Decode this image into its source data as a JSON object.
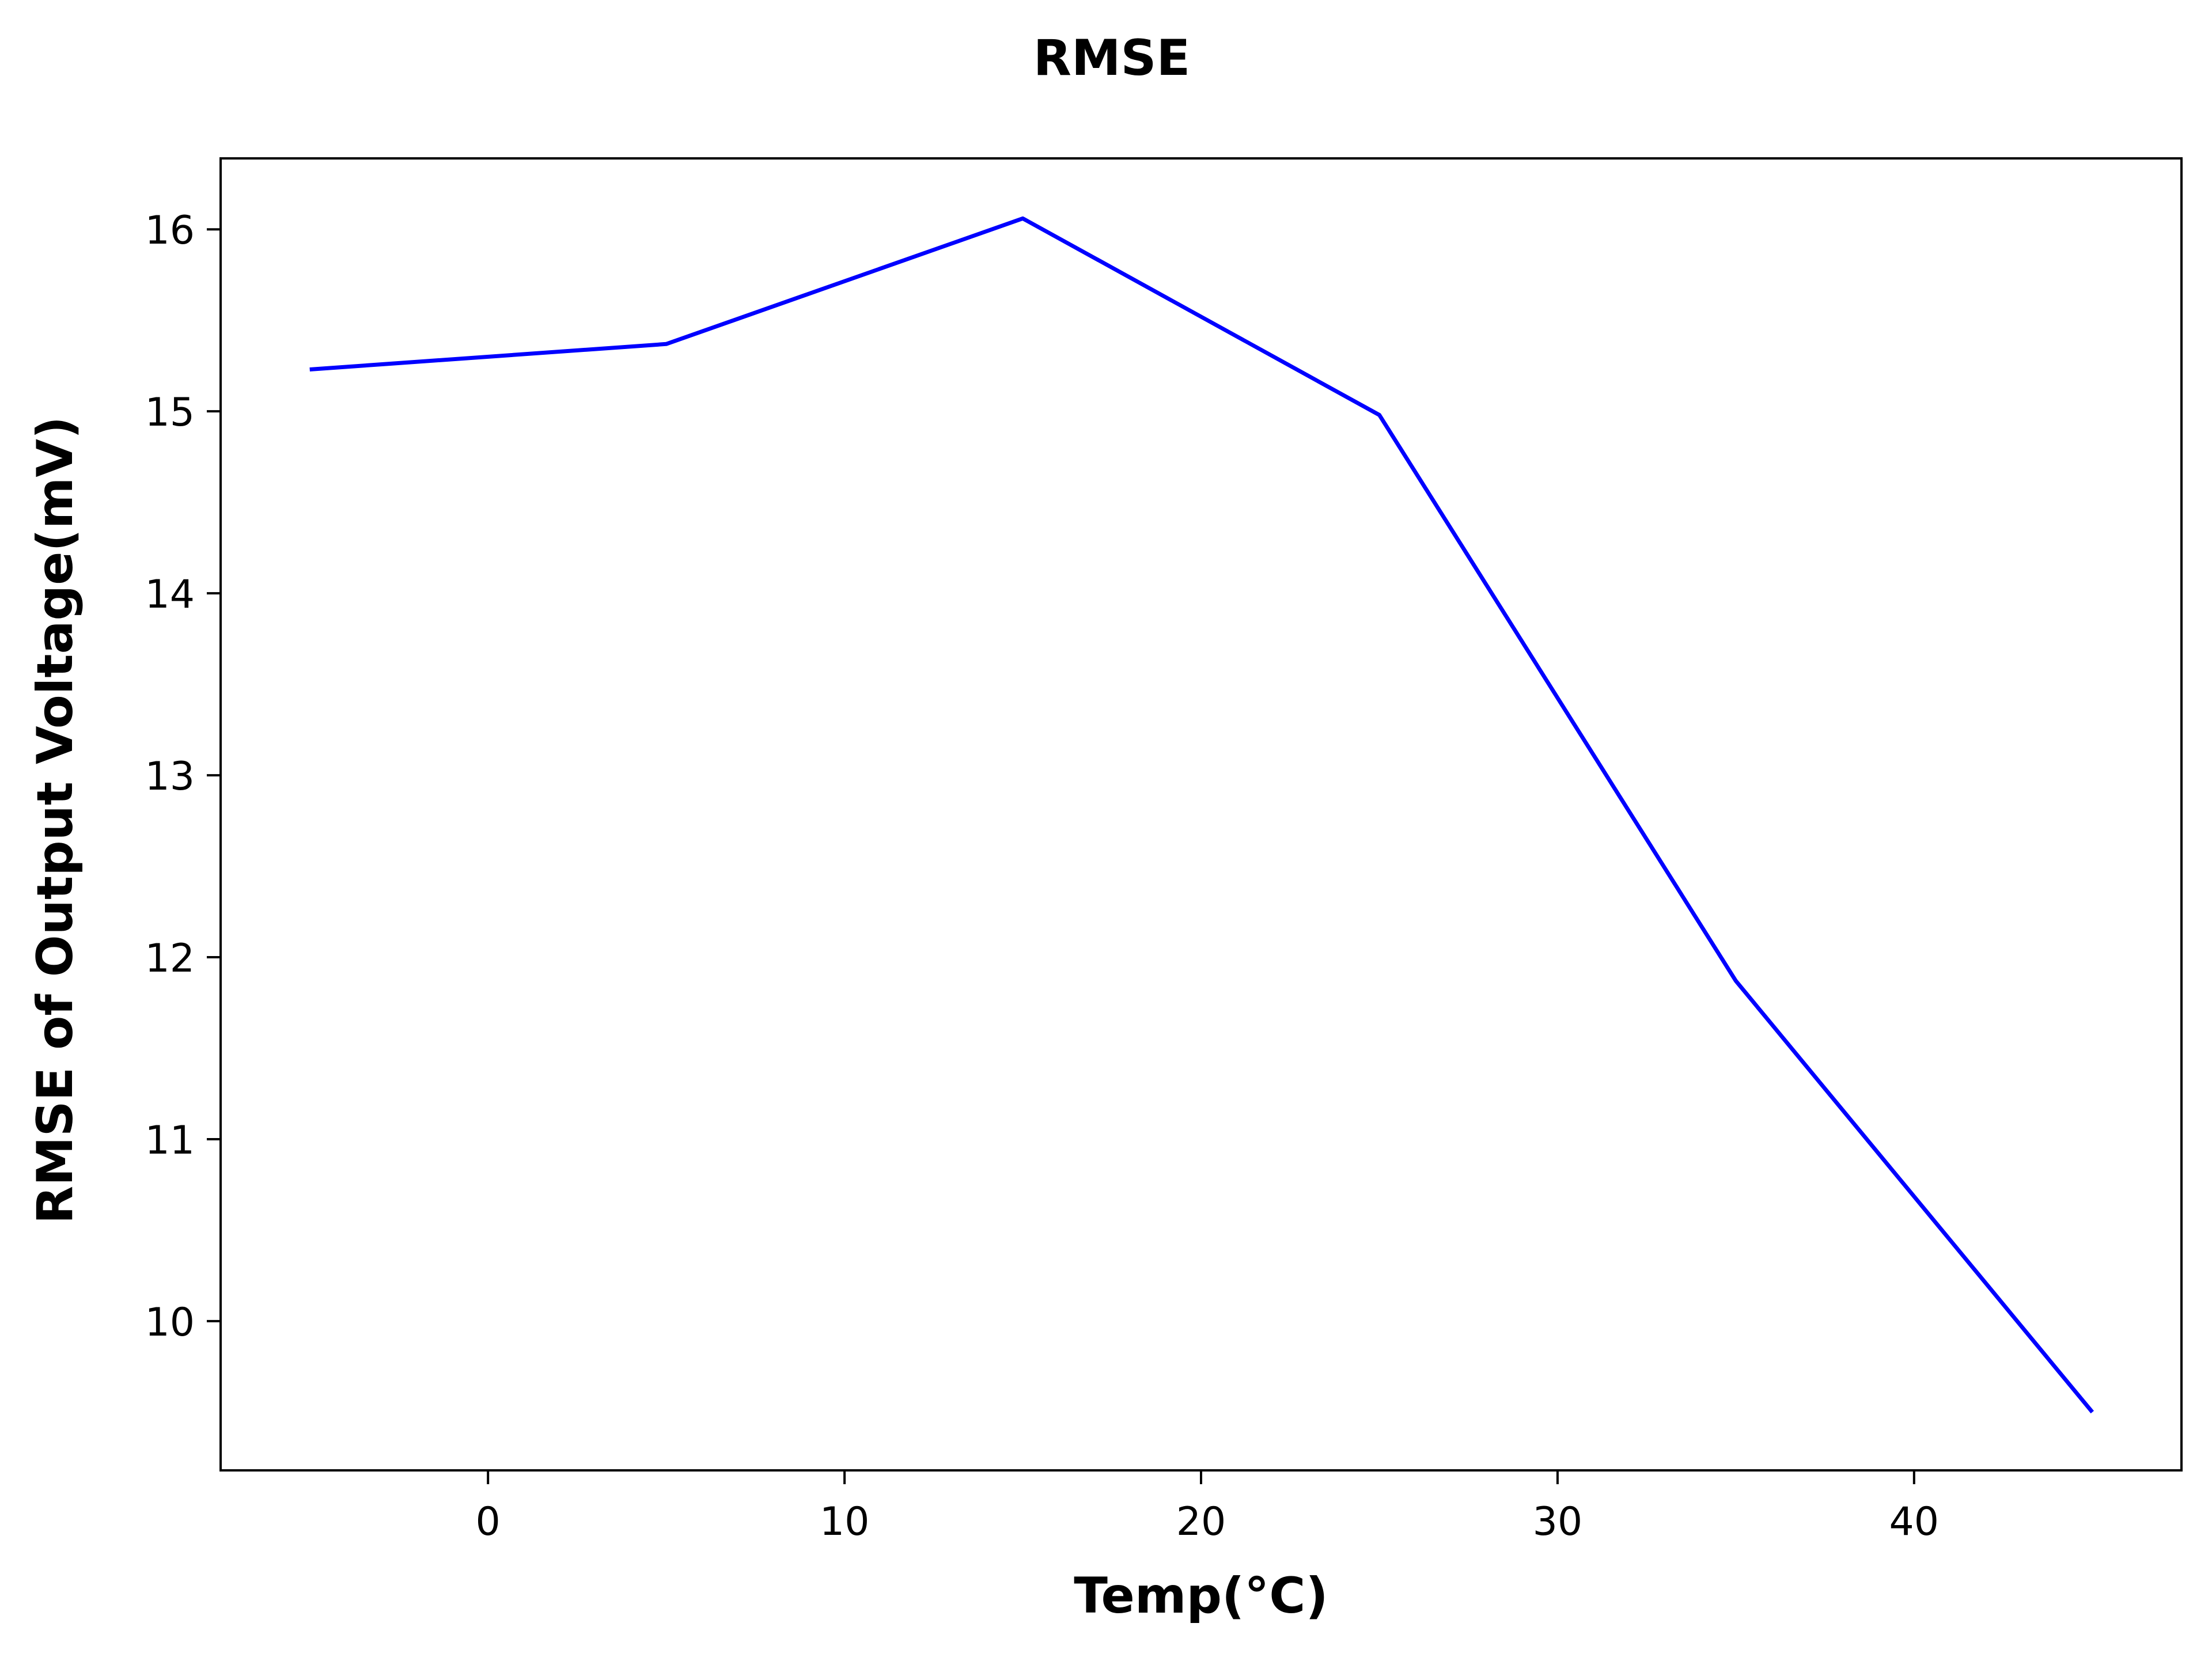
{
  "chart_data": {
    "type": "line",
    "title": "RMSE",
    "xlabel": "Temp(°C)",
    "ylabel": "RMSE of Output Voltage(mV)",
    "xlim": [
      -7.5,
      47.5
    ],
    "ylim": [
      9.18,
      16.39
    ],
    "xticks": [
      0,
      10,
      20,
      30,
      40
    ],
    "yticks": [
      10,
      11,
      12,
      13,
      14,
      15,
      16
    ],
    "grid": false,
    "legend": "none",
    "series": [
      {
        "color": "#0000ff",
        "x": [
          -5,
          5,
          15,
          25,
          35,
          45
        ],
        "y": [
          15.23,
          15.37,
          16.06,
          14.98,
          11.87,
          9.5
        ]
      }
    ]
  }
}
